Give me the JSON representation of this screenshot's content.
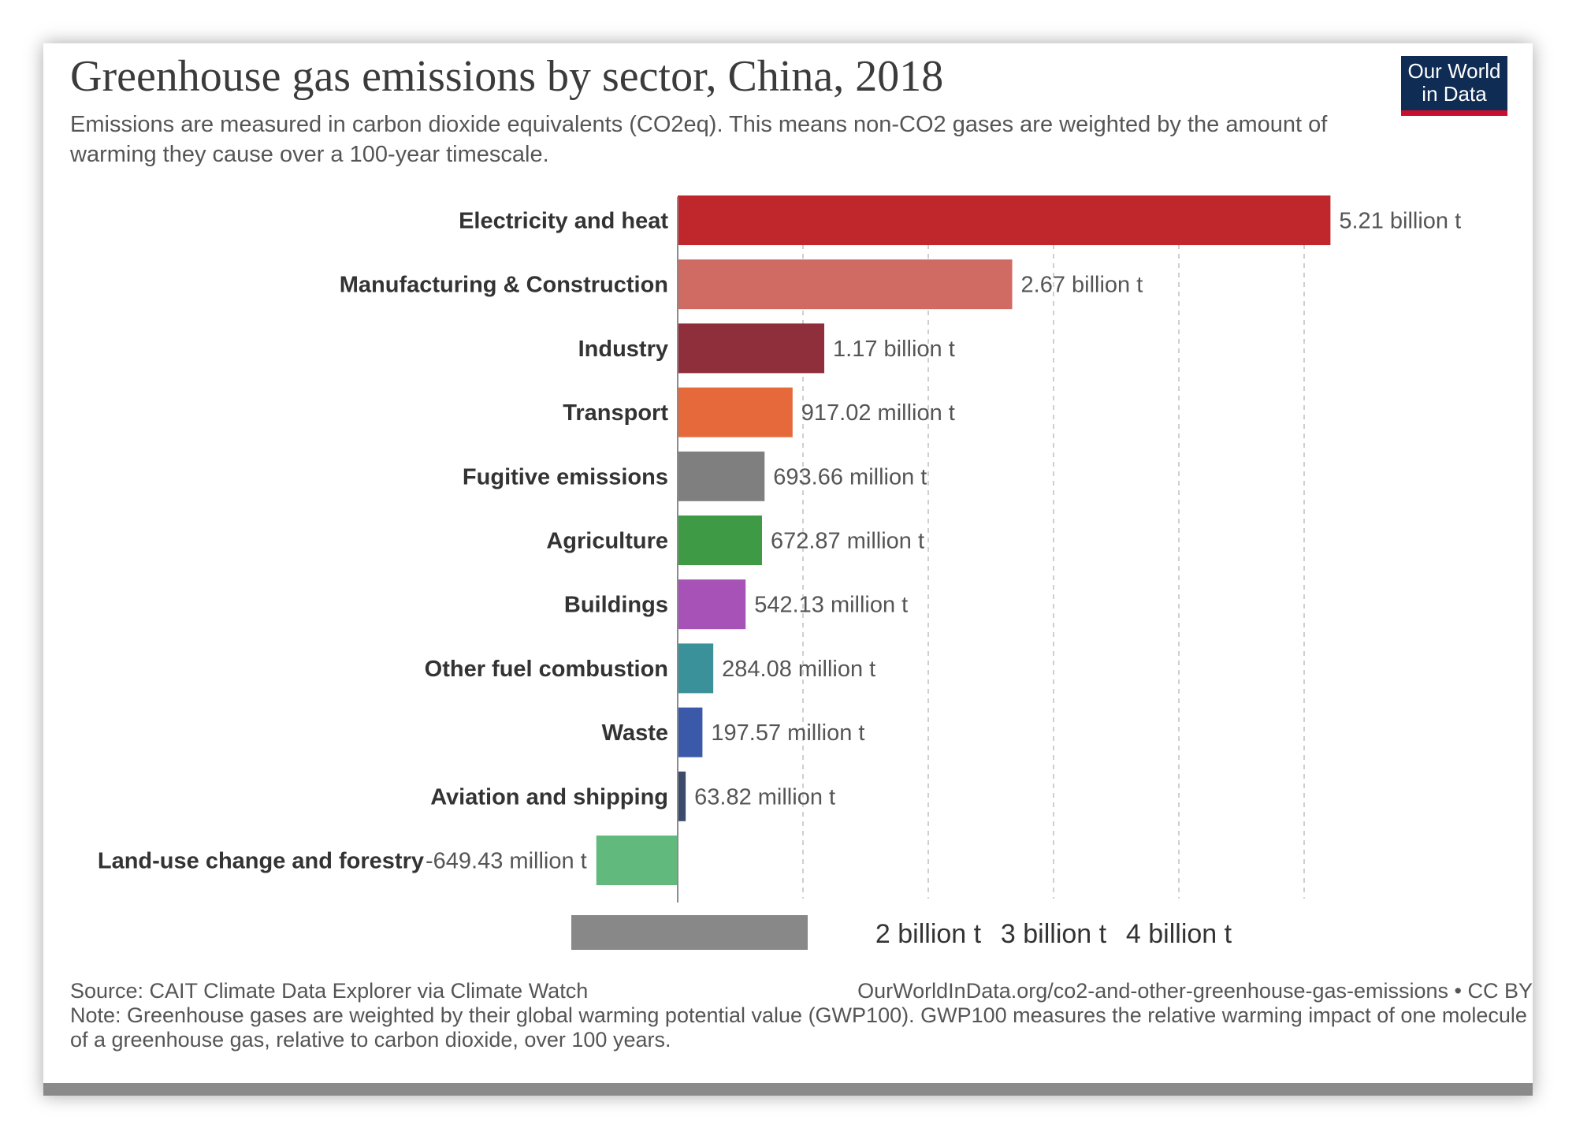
{
  "header": {
    "title": "Greenhouse gas emissions by sector, China, 2018",
    "subtitle": "Emissions are measured in carbon dioxide equivalents (CO2eq). This means non-CO2 gases are weighted by the amount of warming they cause over a 100-year timescale.",
    "logo_line1": "Our World",
    "logo_line2": "in Data"
  },
  "chart_data": {
    "type": "bar",
    "orientation": "horizontal",
    "title": "Greenhouse gas emissions by sector, China, 2018",
    "categories": [
      "Electricity and heat",
      "Manufacturing & Construction",
      "Industry",
      "Transport",
      "Fugitive emissions",
      "Agriculture",
      "Buildings",
      "Other fuel combustion",
      "Waste",
      "Aviation and shipping",
      "Land-use change and forestry"
    ],
    "values": [
      5.21,
      2.67,
      1.17,
      0.91702,
      0.69366,
      0.67287,
      0.54213,
      0.28408,
      0.19757,
      0.06382,
      -0.64943
    ],
    "unit": "billion t",
    "value_labels": [
      "5.21 billion t",
      "2.67 billion t",
      "1.17 billion t",
      "917.02 million t",
      "693.66 million t",
      "672.87 million t",
      "542.13 million t",
      "284.08 million t",
      "197.57 million t",
      "63.82 million t",
      "-649.43 million t"
    ],
    "colors": [
      "#c0272d",
      "#d06b63",
      "#8f2f3c",
      "#e6693b",
      "#7f7f7f",
      "#3f9a45",
      "#a652b6",
      "#3a9199",
      "#3a59a8",
      "#3c4b6b",
      "#62b97d"
    ],
    "xlim": [
      -0.649,
      5.21
    ],
    "x_ticks": [
      1,
      2,
      3,
      4,
      5
    ],
    "x_tick_labels": [
      "",
      "2 billion t",
      "3 billion t",
      "4 billion t",
      ""
    ],
    "grid": true
  },
  "footer": {
    "source": "Source: CAIT Climate Data Explorer via Climate Watch",
    "url": "OurWorldInData.org/co2-and-other-greenhouse-gas-emissions • CC BY",
    "note": "Note: Greenhouse gases are weighted by their global warming potential value (GWP100). GWP100 measures the relative warming impact of one molecule of a greenhouse gas, relative to carbon dioxide, over 100 years."
  }
}
